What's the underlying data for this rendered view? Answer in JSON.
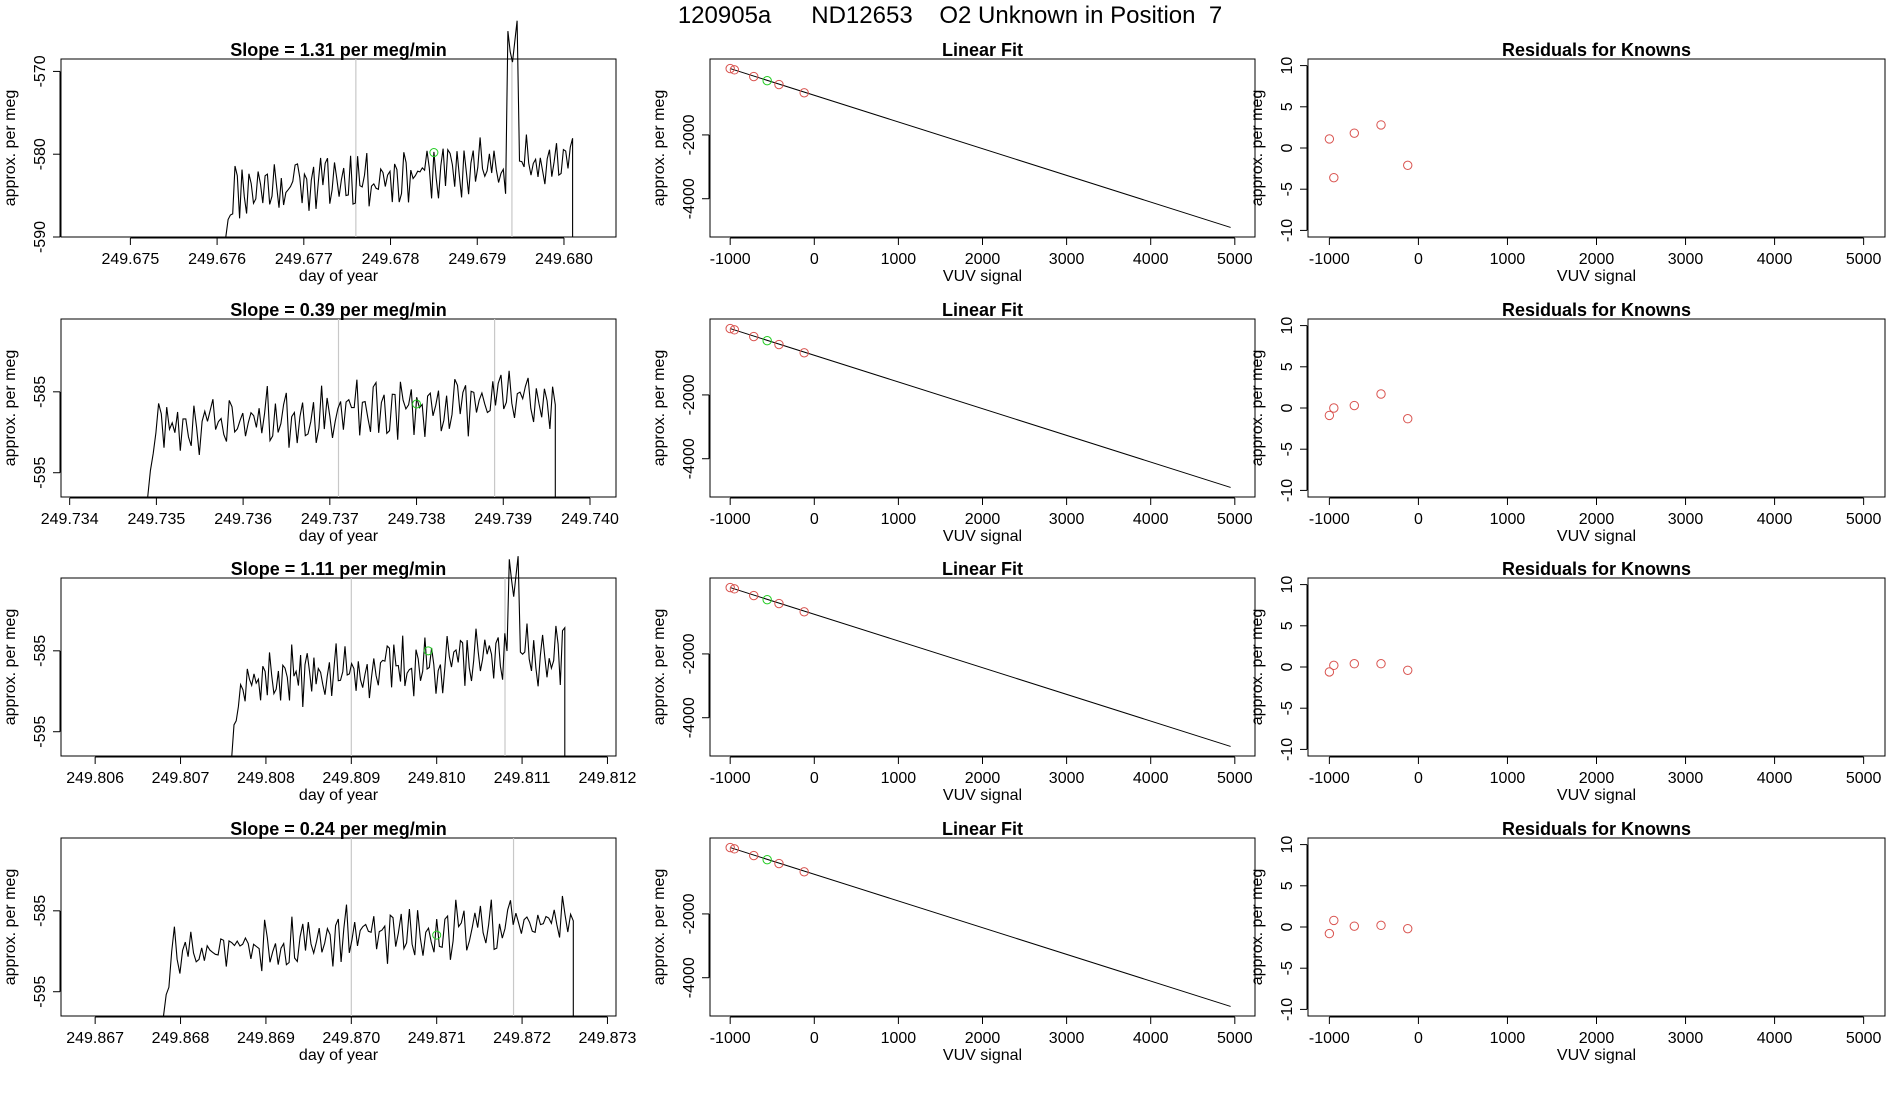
{
  "page": {
    "title": "120905a      ND12653    O2 Unknown in Position  7"
  },
  "colors": {
    "line": "#000000",
    "known_points": "#d9534f",
    "unknown_point": "#22cc22",
    "vertical_markers": "#c8c8c8"
  },
  "chart_data": [
    {
      "type": "line",
      "row": 0,
      "column": "time_series",
      "title": "Slope =  1.31  per meg/min",
      "xlabel": "day of year",
      "ylabel": "approx. per meg",
      "xlim": [
        249.6742,
        249.6806
      ],
      "ylim": [
        -590,
        -568.5
      ],
      "xticks": [
        249.675,
        249.676,
        249.677,
        249.678,
        249.679,
        249.68
      ],
      "xtick_labels": [
        "249.675",
        "249.676",
        "249.677",
        "249.678",
        "249.679",
        "249.680"
      ],
      "yticks": [
        -590,
        -580,
        -570
      ],
      "ytick_labels": [
        "-590",
        "-580",
        "-570"
      ],
      "vlines": [
        249.6776,
        249.6794
      ],
      "trace": {
        "x_start": 249.6761,
        "x_end": 249.6801,
        "base": -590,
        "mean": -582.5,
        "peaks": [
          [
            249.6794,
            -569.5
          ]
        ],
        "amplitude": 2.2,
        "seed": 11
      },
      "green_point": {
        "x": 249.6785,
        "y": -579.8
      }
    },
    {
      "type": "scatter",
      "row": 0,
      "column": "linear_fit",
      "title": "Linear Fit",
      "xlabel": "VUV signal",
      "ylabel": "approx. per meg",
      "xlim": [
        -1240,
        5240
      ],
      "ylim": [
        -5200,
        380
      ],
      "xticks": [
        -1000,
        0,
        1000,
        2000,
        3000,
        4000,
        5000
      ],
      "xtick_labels": [
        "-1000",
        "0",
        "1000",
        "2000",
        "3000",
        "4000",
        "5000"
      ],
      "yticks": [
        -4000,
        -2000
      ],
      "ytick_labels": [
        "-4000",
        "-2000"
      ],
      "fit_line": {
        "x": [
          -1000,
          4950
        ],
        "y": [
          80,
          -4900
        ]
      },
      "points": [
        {
          "x": -1000,
          "y": 80
        },
        {
          "x": -950,
          "y": 40
        },
        {
          "x": -720,
          "y": -170
        },
        {
          "x": -420,
          "y": -420
        },
        {
          "x": -120,
          "y": -680
        }
      ],
      "green_point": {
        "x": -560,
        "y": -300
      }
    },
    {
      "type": "scatter",
      "row": 0,
      "column": "residuals",
      "title": "Residuals for Knowns",
      "xlabel": "VUV signal",
      "ylabel": "approx. per meg",
      "xlim": [
        -1240,
        5240
      ],
      "ylim": [
        -10.8,
        10.8
      ],
      "xticks": [
        -1000,
        0,
        1000,
        2000,
        3000,
        4000,
        5000
      ],
      "xtick_labels": [
        "-1000",
        "0",
        "1000",
        "2000",
        "3000",
        "4000",
        "5000"
      ],
      "yticks": [
        -10,
        -5,
        0,
        5,
        10
      ],
      "ytick_labels": [
        "-10",
        "-5",
        "0",
        "5",
        "10"
      ],
      "points": [
        {
          "x": -1000,
          "y": 1.1
        },
        {
          "x": -950,
          "y": -3.6
        },
        {
          "x": -720,
          "y": 1.8
        },
        {
          "x": -420,
          "y": 2.8
        },
        {
          "x": -120,
          "y": -2.1
        }
      ]
    },
    {
      "type": "line",
      "row": 1,
      "column": "time_series",
      "title": "Slope =  0.39  per meg/min",
      "xlabel": "day of year",
      "ylabel": "approx. per meg",
      "xlim": [
        249.7339,
        249.7403
      ],
      "ylim": [
        -598,
        -576
      ],
      "xticks": [
        249.734,
        249.735,
        249.736,
        249.737,
        249.738,
        249.739,
        249.74
      ],
      "xtick_labels": [
        "249.734",
        "249.735",
        "249.736",
        "249.737",
        "249.738",
        "249.739",
        "249.740"
      ],
      "yticks": [
        -595,
        -585
      ],
      "ytick_labels": [
        "-595",
        "-585"
      ],
      "vlines": [
        249.7371,
        249.7389
      ],
      "trace": {
        "x_start": 249.7349,
        "x_end": 249.7396,
        "base": -598,
        "mean": -587.5,
        "peaks": [],
        "amplitude": 2.2,
        "seed": 23
      },
      "green_point": {
        "x": 249.738,
        "y": -586.5
      }
    },
    {
      "type": "scatter",
      "row": 1,
      "column": "linear_fit",
      "title": "Linear Fit",
      "xlabel": "VUV signal",
      "ylabel": "approx. per meg",
      "xlim": [
        -1240,
        5240
      ],
      "ylim": [
        -5200,
        380
      ],
      "xticks": [
        -1000,
        0,
        1000,
        2000,
        3000,
        4000,
        5000
      ],
      "xtick_labels": [
        "-1000",
        "0",
        "1000",
        "2000",
        "3000",
        "4000",
        "5000"
      ],
      "yticks": [
        -4000,
        -2000
      ],
      "ytick_labels": [
        "-4000",
        "-2000"
      ],
      "fit_line": {
        "x": [
          -1000,
          4950
        ],
        "y": [
          80,
          -4900
        ]
      },
      "points": [
        {
          "x": -1000,
          "y": 80
        },
        {
          "x": -950,
          "y": 40
        },
        {
          "x": -720,
          "y": -170
        },
        {
          "x": -420,
          "y": -420
        },
        {
          "x": -120,
          "y": -680
        }
      ],
      "green_point": {
        "x": -560,
        "y": -300
      }
    },
    {
      "type": "scatter",
      "row": 1,
      "column": "residuals",
      "title": "Residuals for Knowns",
      "xlabel": "VUV signal",
      "ylabel": "approx. per meg",
      "xlim": [
        -1240,
        5240
      ],
      "ylim": [
        -10.8,
        10.8
      ],
      "xticks": [
        -1000,
        0,
        1000,
        2000,
        3000,
        4000,
        5000
      ],
      "xtick_labels": [
        "-1000",
        "0",
        "1000",
        "2000",
        "3000",
        "4000",
        "5000"
      ],
      "yticks": [
        -10,
        -5,
        0,
        5,
        10
      ],
      "ytick_labels": [
        "-10",
        "-5",
        "0",
        "5",
        "10"
      ],
      "points": [
        {
          "x": -1000,
          "y": -0.9
        },
        {
          "x": -950,
          "y": 0.0
        },
        {
          "x": -720,
          "y": 0.3
        },
        {
          "x": -420,
          "y": 1.7
        },
        {
          "x": -120,
          "y": -1.3
        }
      ]
    },
    {
      "type": "line",
      "row": 2,
      "column": "time_series",
      "title": "Slope =  1.11  per meg/min",
      "xlabel": "day of year",
      "ylabel": "approx. per meg",
      "xlim": [
        249.8056,
        249.8121
      ],
      "ylim": [
        -598,
        -576
      ],
      "xticks": [
        249.806,
        249.807,
        249.808,
        249.809,
        249.81,
        249.811,
        249.812
      ],
      "xtick_labels": [
        "249.806",
        "249.807",
        "249.808",
        "249.809",
        "249.810",
        "249.811",
        "249.812"
      ],
      "yticks": [
        -595,
        -585
      ],
      "ytick_labels": [
        "-595",
        "-585"
      ],
      "vlines": [
        249.809,
        249.8108
      ],
      "trace": {
        "x_start": 249.8076,
        "x_end": 249.8115,
        "base": -598,
        "mean": -587.0,
        "peaks": [
          [
            249.8109,
            -578.5
          ]
        ],
        "amplitude": 2.2,
        "seed": 37
      },
      "green_point": {
        "x": 249.8099,
        "y": -585.0
      }
    },
    {
      "type": "scatter",
      "row": 2,
      "column": "linear_fit",
      "title": "Linear Fit",
      "xlabel": "VUV signal",
      "ylabel": "approx. per meg",
      "xlim": [
        -1240,
        5240
      ],
      "ylim": [
        -5200,
        380
      ],
      "xticks": [
        -1000,
        0,
        1000,
        2000,
        3000,
        4000,
        5000
      ],
      "xtick_labels": [
        "-1000",
        "0",
        "1000",
        "2000",
        "3000",
        "4000",
        "5000"
      ],
      "yticks": [
        -4000,
        -2000
      ],
      "ytick_labels": [
        "-4000",
        "-2000"
      ],
      "fit_line": {
        "x": [
          -1000,
          4950
        ],
        "y": [
          80,
          -4900
        ]
      },
      "points": [
        {
          "x": -1000,
          "y": 80
        },
        {
          "x": -950,
          "y": 40
        },
        {
          "x": -720,
          "y": -170
        },
        {
          "x": -420,
          "y": -420
        },
        {
          "x": -120,
          "y": -680
        }
      ],
      "green_point": {
        "x": -560,
        "y": -300
      }
    },
    {
      "type": "scatter",
      "row": 2,
      "column": "residuals",
      "title": "Residuals for Knowns",
      "xlabel": "VUV signal",
      "ylabel": "approx. per meg",
      "xlim": [
        -1240,
        5240
      ],
      "ylim": [
        -10.8,
        10.8
      ],
      "xticks": [
        -1000,
        0,
        1000,
        2000,
        3000,
        4000,
        5000
      ],
      "xtick_labels": [
        "-1000",
        "0",
        "1000",
        "2000",
        "3000",
        "4000",
        "5000"
      ],
      "yticks": [
        -10,
        -5,
        0,
        5,
        10
      ],
      "ytick_labels": [
        "-10",
        "-5",
        "0",
        "5",
        "10"
      ],
      "points": [
        {
          "x": -1000,
          "y": -0.6
        },
        {
          "x": -950,
          "y": 0.2
        },
        {
          "x": -720,
          "y": 0.4
        },
        {
          "x": -420,
          "y": 0.4
        },
        {
          "x": -120,
          "y": -0.4
        }
      ]
    },
    {
      "type": "line",
      "row": 3,
      "column": "time_series",
      "title": "Slope =  0.24  per meg/min",
      "xlabel": "day of year",
      "ylabel": "approx. per meg",
      "xlim": [
        249.8666,
        249.8731
      ],
      "ylim": [
        -598,
        -576
      ],
      "xticks": [
        249.867,
        249.868,
        249.869,
        249.87,
        249.871,
        249.872,
        249.873
      ],
      "xtick_labels": [
        "249.867",
        "249.868",
        "249.869",
        "249.870",
        "249.871",
        "249.872",
        "249.873"
      ],
      "yticks": [
        -595,
        -585
      ],
      "ytick_labels": [
        "-595",
        "-585"
      ],
      "vlines": [
        249.87,
        249.8719
      ],
      "trace": {
        "x_start": 249.8678,
        "x_end": 249.8726,
        "base": -598,
        "mean": -588.0,
        "peaks": [],
        "amplitude": 2.2,
        "seed": 53
      },
      "green_point": {
        "x": 249.871,
        "y": -588.0
      }
    },
    {
      "type": "scatter",
      "row": 3,
      "column": "linear_fit",
      "title": "Linear Fit",
      "xlabel": "VUV signal",
      "ylabel": "approx. per meg",
      "xlim": [
        -1240,
        5240
      ],
      "ylim": [
        -5200,
        380
      ],
      "xticks": [
        -1000,
        0,
        1000,
        2000,
        3000,
        4000,
        5000
      ],
      "xtick_labels": [
        "-1000",
        "0",
        "1000",
        "2000",
        "3000",
        "4000",
        "5000"
      ],
      "yticks": [
        -4000,
        -2000
      ],
      "ytick_labels": [
        "-4000",
        "-2000"
      ],
      "fit_line": {
        "x": [
          -1000,
          4950
        ],
        "y": [
          80,
          -4900
        ]
      },
      "points": [
        {
          "x": -1000,
          "y": 80
        },
        {
          "x": -950,
          "y": 40
        },
        {
          "x": -720,
          "y": -170
        },
        {
          "x": -420,
          "y": -420
        },
        {
          "x": -120,
          "y": -680
        }
      ],
      "green_point": {
        "x": -560,
        "y": -300
      }
    },
    {
      "type": "scatter",
      "row": 3,
      "column": "residuals",
      "title": "Residuals for Knowns",
      "xlabel": "VUV signal",
      "ylabel": "approx. per meg",
      "xlim": [
        -1240,
        5240
      ],
      "ylim": [
        -10.8,
        10.8
      ],
      "xticks": [
        -1000,
        0,
        1000,
        2000,
        3000,
        4000,
        5000
      ],
      "xtick_labels": [
        "-1000",
        "0",
        "1000",
        "2000",
        "3000",
        "4000",
        "5000"
      ],
      "yticks": [
        -10,
        -5,
        0,
        5,
        10
      ],
      "ytick_labels": [
        "-10",
        "-5",
        "0",
        "5",
        "10"
      ],
      "points": [
        {
          "x": -1000,
          "y": -0.8
        },
        {
          "x": -950,
          "y": 0.8
        },
        {
          "x": -720,
          "y": 0.1
        },
        {
          "x": -420,
          "y": 0.2
        },
        {
          "x": -120,
          "y": -0.2
        }
      ]
    }
  ]
}
